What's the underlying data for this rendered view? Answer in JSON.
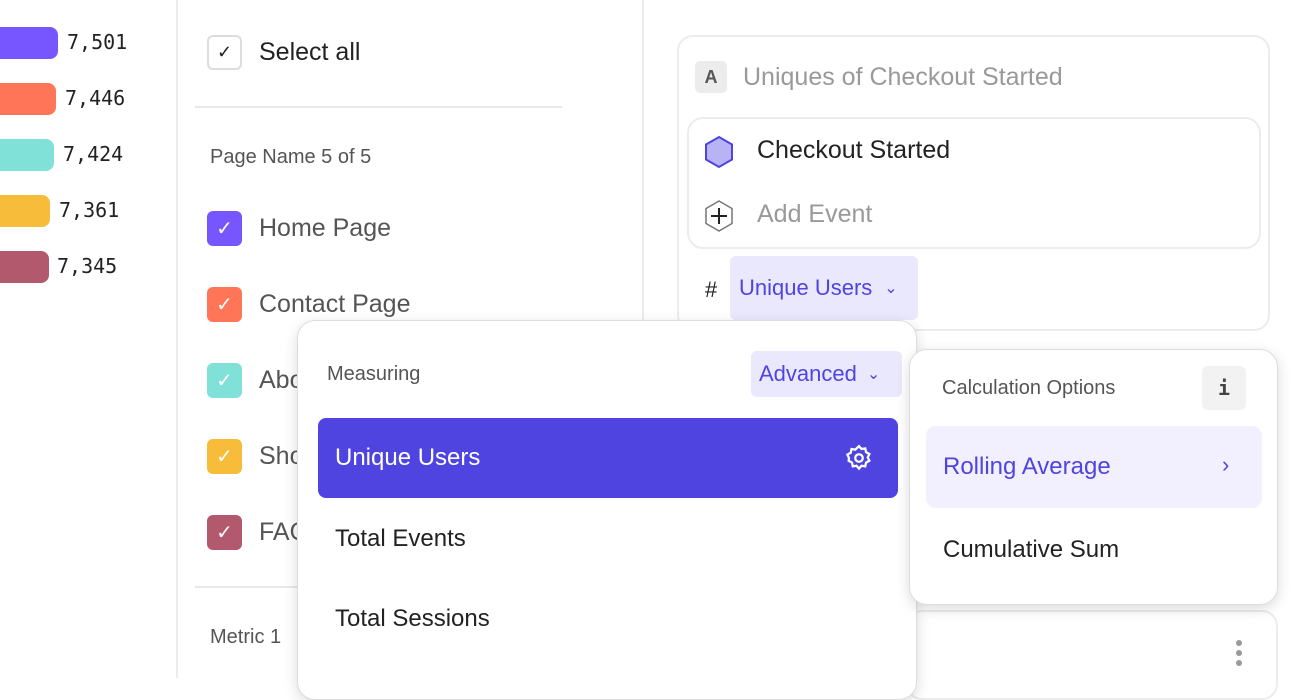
{
  "legend_values": [
    {
      "value": "7,501",
      "color": "#7856FF"
    },
    {
      "value": "7,446",
      "color": "#FF7557"
    },
    {
      "value": "7,424",
      "color": "#80E1D9"
    },
    {
      "value": "7,361",
      "color": "#F8BC3B"
    },
    {
      "value": "7,345",
      "color": "#B2596E"
    }
  ],
  "filter": {
    "select_all": "Select all",
    "group_label": "Page Name 5 of 5",
    "items": [
      {
        "label": "Home Page",
        "color": "#7856FF"
      },
      {
        "label": "Contact Page",
        "color": "#FF7557"
      },
      {
        "label": "Abo",
        "color": "#80E1D9"
      },
      {
        "label": "Sho",
        "color": "#F8BC3B"
      },
      {
        "label": "FAQ",
        "color": "#B2596E"
      }
    ],
    "metric_label": "Metric 1"
  },
  "metric_card": {
    "badge": "A",
    "title": "Uniques of Checkout Started",
    "event": "Checkout Started",
    "add_event": "Add Event",
    "hash": "#",
    "measure": "Unique Users"
  },
  "measuring_menu": {
    "header": "Measuring",
    "mode": "Advanced",
    "options": [
      "Unique Users",
      "Total Events",
      "Total Sessions"
    ],
    "selected": "Unique Users"
  },
  "calc_menu": {
    "header": "Calculation Options",
    "info": "i",
    "options": [
      "Rolling Average",
      "Cumulative Sum"
    ],
    "highlighted": "Rolling Average"
  },
  "colors": {
    "accent": "#4F44E0",
    "accent_light": "#EAE8FC"
  }
}
